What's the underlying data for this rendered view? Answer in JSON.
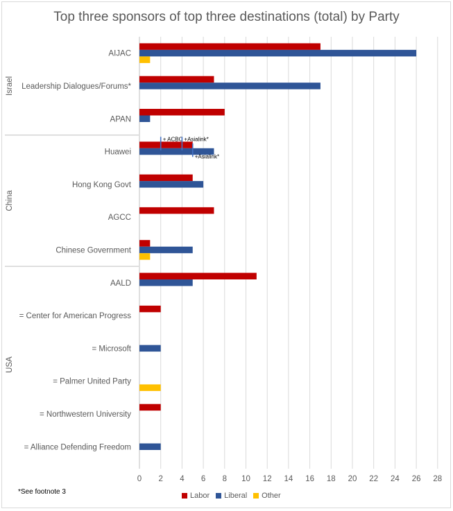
{
  "chart_data": {
    "type": "bar",
    "orientation": "horizontal",
    "title": "Top three sponsors of top three destinations (total) by Party",
    "xlim": [
      0,
      28
    ],
    "xticks": [
      0,
      2,
      4,
      6,
      8,
      10,
      12,
      14,
      16,
      18,
      20,
      22,
      24,
      26,
      28
    ],
    "series": [
      {
        "name": "Labor",
        "color": "#c00000"
      },
      {
        "name": "Liberal",
        "color": "#2f5597"
      },
      {
        "name": "Other",
        "color": "#ffc000"
      }
    ],
    "groups": [
      {
        "name": "Israel",
        "categories": [
          {
            "label": "AIJAC",
            "values": [
              17,
              26,
              1
            ]
          },
          {
            "label": "Leadership Dialogues/Forums*",
            "values": [
              7,
              17,
              0
            ]
          },
          {
            "label": "APAN",
            "values": [
              8,
              1,
              0
            ]
          }
        ]
      },
      {
        "name": "China",
        "categories": [
          {
            "label": "Huawei",
            "values": [
              5,
              7,
              0
            ]
          },
          {
            "label": "Hong Kong Govt",
            "values": [
              5,
              6,
              0
            ]
          },
          {
            "label": "AGCC",
            "values": [
              7,
              0,
              0
            ]
          },
          {
            "label": "Chinese Government",
            "values": [
              1,
              5,
              1
            ]
          }
        ]
      },
      {
        "name": "USA",
        "categories": [
          {
            "label": "AALD",
            "values": [
              11,
              5,
              0
            ]
          },
          {
            "label": "= Center for American Progress",
            "values": [
              2,
              0,
              0
            ]
          },
          {
            "label": "= Microsoft",
            "values": [
              0,
              2,
              0
            ]
          },
          {
            "label": "= Palmer United Party",
            "values": [
              0,
              0,
              2
            ]
          },
          {
            "label": "= Northwestern University",
            "values": [
              2,
              0,
              0
            ]
          },
          {
            "label": "= Alliance Defending Freedom",
            "values": [
              0,
              2,
              0
            ]
          }
        ]
      }
    ],
    "annotations": [
      {
        "text": "+ ACBC",
        "category": "Huawei",
        "series": "Labor",
        "x": 2
      },
      {
        "text": "+Asialink*",
        "category": "Huawei",
        "series": "Labor",
        "x": 4
      },
      {
        "text": "+Asialink*",
        "category": "Huawei",
        "series": "Liberal",
        "x": 5
      }
    ],
    "footnote": "*See footnote 3"
  }
}
